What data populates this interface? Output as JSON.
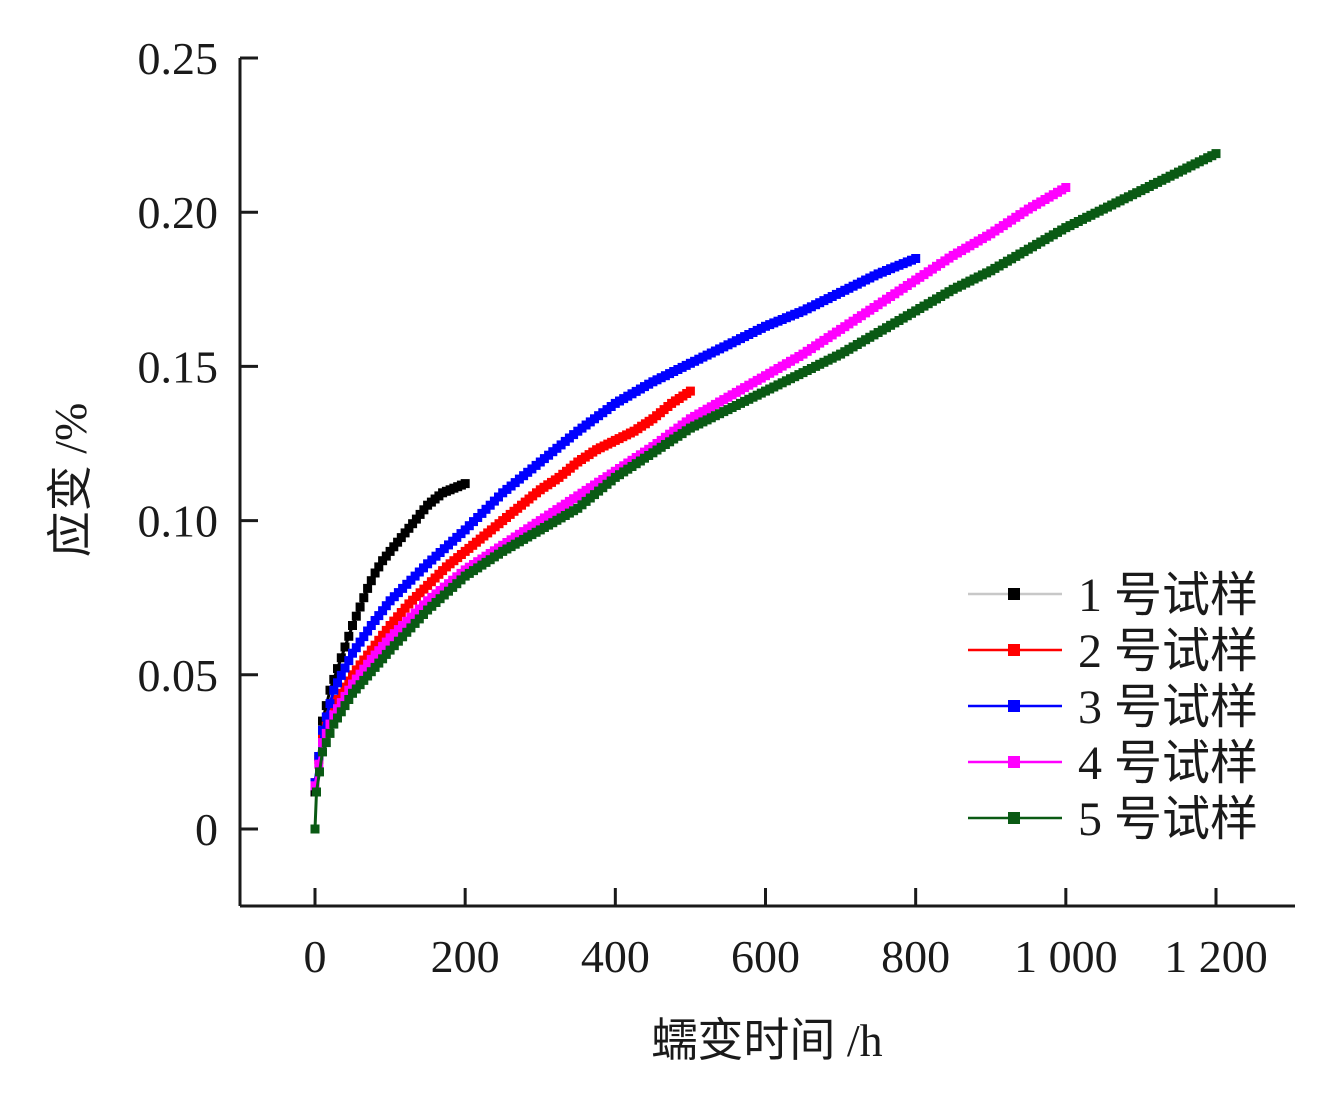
{
  "chart_data": {
    "type": "line",
    "xlabel": "蠕变时间 /h",
    "ylabel": "应变 /%",
    "xlim": [
      -50,
      1300
    ],
    "ylim": [
      -0.025,
      0.25
    ],
    "xticks": [
      0,
      200,
      400,
      600,
      800,
      1000,
      1200
    ],
    "xtick_labels": [
      "0",
      "200",
      "400",
      "600",
      "800",
      "1 000",
      "1 200"
    ],
    "yticks": [
      0,
      0.05,
      0.1,
      0.15,
      0.2,
      0.25
    ],
    "ytick_labels": [
      "0",
      "0.05",
      "0.10",
      "0.15",
      "0.20",
      "0.25"
    ],
    "grid": false,
    "legend_position": "bottom-right",
    "series": [
      {
        "name": "1 号试样",
        "color": "#000000",
        "legend_line_color": "#c8c8c8",
        "x": [
          0,
          10,
          20,
          30,
          40,
          50,
          60,
          70,
          80,
          90,
          100,
          110,
          120,
          130,
          140,
          150,
          160,
          170,
          180,
          190,
          200
        ],
        "y": [
          0.012,
          0.035,
          0.045,
          0.052,
          0.059,
          0.066,
          0.072,
          0.078,
          0.083,
          0.087,
          0.09,
          0.093,
          0.096,
          0.099,
          0.102,
          0.105,
          0.107,
          0.109,
          0.11,
          0.111,
          0.112
        ]
      },
      {
        "name": "2 号试样",
        "color": "#ff0000",
        "legend_line_color": "#ff0000",
        "x": [
          0,
          10,
          25,
          50,
          75,
          100,
          125,
          150,
          175,
          200,
          225,
          250,
          275,
          300,
          325,
          350,
          375,
          400,
          425,
          450,
          475,
          500
        ],
        "y": [
          0.015,
          0.03,
          0.04,
          0.05,
          0.058,
          0.066,
          0.073,
          0.079,
          0.085,
          0.09,
          0.095,
          0.1,
          0.105,
          0.11,
          0.114,
          0.119,
          0.123,
          0.126,
          0.129,
          0.133,
          0.138,
          0.142
        ]
      },
      {
        "name": "3 号试样",
        "color": "#0000ff",
        "legend_line_color": "#0000ff",
        "x": [
          0,
          10,
          25,
          50,
          75,
          100,
          150,
          200,
          250,
          300,
          350,
          400,
          450,
          500,
          550,
          600,
          650,
          700,
          750,
          800
        ],
        "y": [
          0.015,
          0.032,
          0.045,
          0.057,
          0.066,
          0.074,
          0.086,
          0.097,
          0.109,
          0.119,
          0.129,
          0.138,
          0.145,
          0.151,
          0.157,
          0.163,
          0.168,
          0.174,
          0.18,
          0.185
        ]
      },
      {
        "name": "4 号试样",
        "color": "#ff00ff",
        "legend_line_color": "#ff00ff",
        "x": [
          0,
          10,
          25,
          50,
          75,
          100,
          150,
          200,
          250,
          300,
          350,
          400,
          450,
          500,
          550,
          600,
          650,
          700,
          750,
          800,
          850,
          900,
          950,
          1000
        ],
        "y": [
          0.014,
          0.028,
          0.037,
          0.047,
          0.055,
          0.062,
          0.074,
          0.084,
          0.092,
          0.1,
          0.108,
          0.116,
          0.124,
          0.133,
          0.14,
          0.147,
          0.154,
          0.162,
          0.17,
          0.178,
          0.186,
          0.193,
          0.201,
          0.208
        ]
      },
      {
        "name": "5 号试样",
        "color": "#0a5a14",
        "legend_line_color": "#0a5a14",
        "x": [
          0,
          2,
          10,
          25,
          50,
          75,
          100,
          150,
          200,
          250,
          300,
          350,
          400,
          450,
          500,
          550,
          600,
          650,
          700,
          750,
          800,
          850,
          900,
          950,
          1000,
          1050,
          1100,
          1150,
          1200
        ],
        "y": [
          0.0,
          0.012,
          0.025,
          0.034,
          0.044,
          0.051,
          0.058,
          0.071,
          0.082,
          0.09,
          0.097,
          0.104,
          0.114,
          0.122,
          0.13,
          0.136,
          0.142,
          0.148,
          0.154,
          0.161,
          0.168,
          0.175,
          0.181,
          0.188,
          0.195,
          0.201,
          0.207,
          0.213,
          0.219
        ]
      }
    ]
  }
}
